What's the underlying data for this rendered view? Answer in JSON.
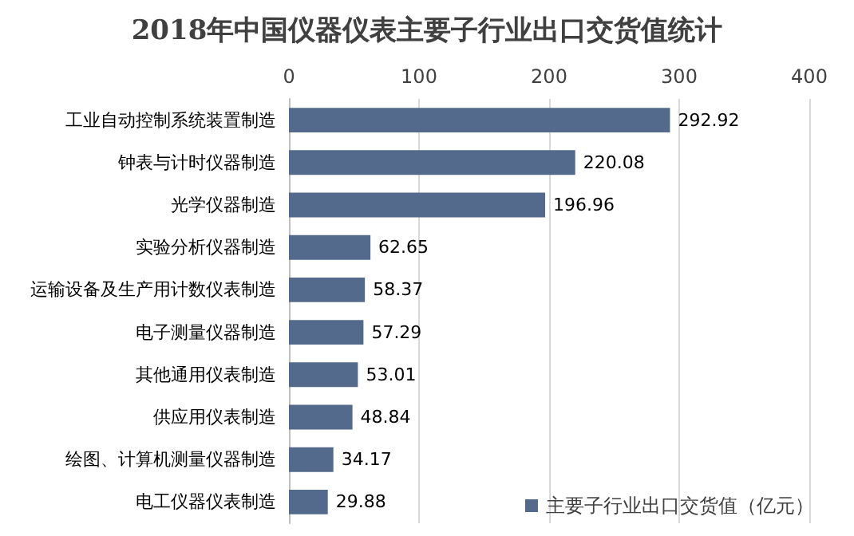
{
  "chart_data": {
    "type": "bar",
    "orientation": "horizontal",
    "title": "2018年中国仪器仪表主要子行业出口交货值统计",
    "categories": [
      "工业自动控制系统装置制造",
      "钟表与计时仪器制造",
      "光学仪器制造",
      "实验分析仪器制造",
      "运输设备及生产用计数仪表制造",
      "电子测量仪器制造",
      "其他通用仪表制造",
      "供应用仪表制造",
      "绘图、计算机测量仪器制造",
      "电工仪器仪表制造"
    ],
    "series": [
      {
        "name": "主要子行业出口交货值（亿元）",
        "color": "#536a8c",
        "values": [
          292.92,
          220.08,
          196.96,
          62.65,
          58.37,
          57.29,
          53.01,
          48.84,
          34.17,
          29.88
        ]
      }
    ],
    "xlim": [
      0,
      400
    ],
    "xticks": [
      0,
      100,
      200,
      300,
      400
    ],
    "grid": "x",
    "legend": "bottom right",
    "data_labels": true
  }
}
